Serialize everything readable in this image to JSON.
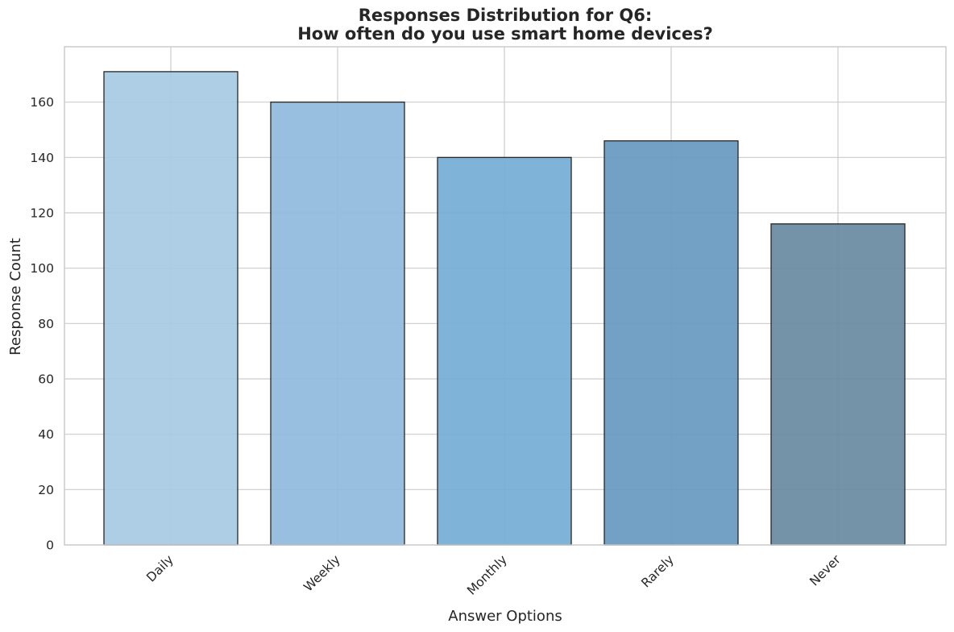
{
  "chart_data": {
    "type": "bar",
    "title_line1": "Responses Distribution for Q6:",
    "title_line2": "How often do you use smart home devices?",
    "xlabel": "Answer Options",
    "ylabel": "Response Count",
    "categories": [
      "Daily",
      "Weekly",
      "Monthly",
      "Rarely",
      "Never"
    ],
    "values": [
      171,
      160,
      140,
      146,
      116
    ],
    "colors": [
      "#a6cae2",
      "#8fbadd",
      "#75acd5",
      "#6699c0",
      "#688aa1"
    ],
    "ylim": [
      0,
      180
    ],
    "yticks": [
      0,
      20,
      40,
      60,
      80,
      100,
      120,
      140,
      160
    ],
    "grid": true,
    "legend": "none"
  }
}
